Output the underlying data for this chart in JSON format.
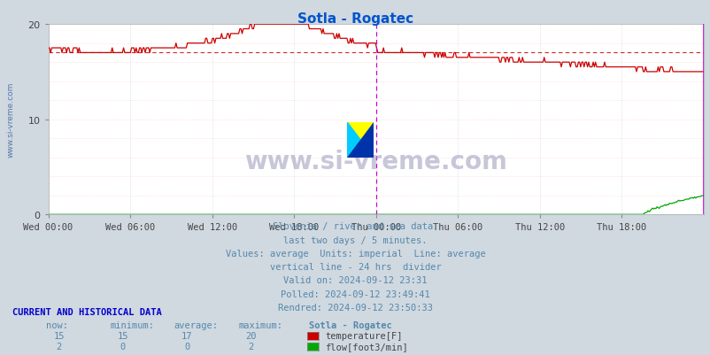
{
  "title": "Sotla - Rogatec",
  "title_color": "#0055cc",
  "bg_color": "#d0d8e0",
  "plot_bg_color": "#ffffff",
  "y_min": 0,
  "y_max": 20,
  "temp_average": 17,
  "flow_average": 0,
  "temp_color": "#cc0000",
  "flow_color": "#00aa00",
  "avg_temp_color": "#cc0000",
  "avg_flow_color": "#00cc00",
  "divider_color": "#cc00cc",
  "watermark": "www.si-vreme.com",
  "watermark_color": "#aaaacc",
  "subtitle_lines": [
    "Slovenia / river and sea data.",
    "last two days / 5 minutes.",
    "Values: average  Units: imperial  Line: average",
    "vertical line - 24 hrs  divider",
    "Valid on: 2024-09-12 23:31",
    "Polled: 2024-09-12 23:49:41",
    "Rendred: 2024-09-12 23:50:33"
  ],
  "subtitle_color": "#5588aa",
  "legend_entries": [
    {
      "label": "temperature[F]",
      "color": "#cc0000",
      "now": 15,
      "min": 15,
      "avg": 17,
      "max": 20
    },
    {
      "label": "flow[foot3/min]",
      "color": "#00aa00",
      "now": 2,
      "min": 0,
      "avg": 0,
      "max": 2
    }
  ],
  "x_tick_labels": [
    "Wed 00:00",
    "Wed 06:00",
    "Wed 12:00",
    "Wed 18:00",
    "Thu 00:00",
    "Thu 06:00",
    "Thu 12:00",
    "Thu 18:00"
  ],
  "x_tick_positions": [
    0,
    6,
    12,
    18,
    24,
    30,
    36,
    42
  ],
  "grid_color_h": "#ffcccc",
  "grid_color_v": "#ccccdd",
  "y_ticks": [
    0,
    10,
    20
  ],
  "logo_colors": [
    "#ffff00",
    "#00ccff",
    "#0033cc",
    "#ffff00"
  ],
  "logo_diag_color": "#00ccff"
}
